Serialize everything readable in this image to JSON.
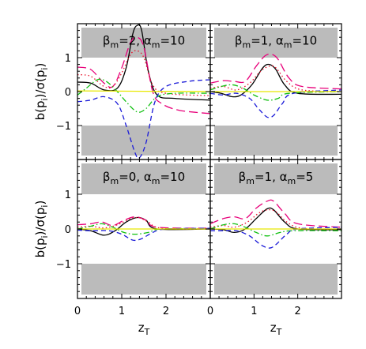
{
  "chart_data": {
    "type": "line",
    "ylabel_prefix": "b(p",
    "ylabel_sub": "i",
    "ylabel_mid": ")/σ(p",
    "ylabel_end": ")",
    "xlabel_main": "z",
    "xlabel_sub": "T",
    "xlim": [
      0,
      3
    ],
    "ylim": [
      -2,
      2
    ],
    "x_ticks": [
      "0",
      "1",
      "2"
    ],
    "y_ticks": [
      "1",
      "0",
      "−1"
    ],
    "y_tick_values": [
      1,
      0,
      -1
    ],
    "x_tick_values": [
      0,
      1,
      2
    ],
    "shaded_bands": [
      [
        1,
        2
      ],
      [
        -2,
        -1
      ]
    ],
    "colors": {
      "black": "#000000",
      "magenta": "#e8007a",
      "red": "#e8102a",
      "green": "#10c010",
      "blue": "#1a1ad8",
      "yellow": "#e8e800",
      "band": "#bbbbbb"
    },
    "panels": [
      {
        "title": {
          "beta": "2",
          "alpha": "10"
        },
        "series": [
          {
            "color": "black",
            "dash": "solid",
            "points": [
              [
                0,
                0.28
              ],
              [
                0.3,
                0.25
              ],
              [
                0.6,
                0.05
              ],
              [
                0.9,
                0.1
              ],
              [
                1.1,
                0.7
              ],
              [
                1.25,
                1.7
              ],
              [
                1.35,
                1.95
              ],
              [
                1.45,
                1.8
              ],
              [
                1.6,
                0.6
              ],
              [
                1.8,
                -0.1
              ],
              [
                2.2,
                -0.2
              ],
              [
                3,
                -0.25
              ]
            ]
          },
          {
            "color": "magenta",
            "dash": "longdash",
            "points": [
              [
                0,
                0.72
              ],
              [
                0.3,
                0.65
              ],
              [
                0.6,
                0.25
              ],
              [
                0.8,
                0.15
              ],
              [
                1.0,
                0.7
              ],
              [
                1.2,
                1.45
              ],
              [
                1.35,
                1.6
              ],
              [
                1.5,
                1.3
              ],
              [
                1.7,
                0.0
              ],
              [
                1.9,
                -0.35
              ],
              [
                2.3,
                -0.55
              ],
              [
                3,
                -0.65
              ]
            ]
          },
          {
            "color": "red",
            "dash": "dot",
            "points": [
              [
                0,
                0.5
              ],
              [
                0.3,
                0.45
              ],
              [
                0.6,
                0.15
              ],
              [
                0.8,
                0.15
              ],
              [
                1.0,
                0.55
              ],
              [
                1.2,
                1.1
              ],
              [
                1.35,
                1.2
              ],
              [
                1.5,
                1.0
              ],
              [
                1.7,
                0.2
              ],
              [
                2.0,
                -0.05
              ],
              [
                3,
                -0.12
              ]
            ]
          },
          {
            "color": "green",
            "dash": "dashdot",
            "points": [
              [
                0,
                -0.1
              ],
              [
                0.2,
                0.1
              ],
              [
                0.45,
                0.35
              ],
              [
                0.65,
                0.3
              ],
              [
                0.9,
                0.0
              ],
              [
                1.1,
                -0.3
              ],
              [
                1.35,
                -0.6
              ],
              [
                1.55,
                -0.5
              ],
              [
                1.8,
                -0.15
              ],
              [
                2.2,
                -0.05
              ],
              [
                3,
                -0.05
              ]
            ]
          },
          {
            "color": "blue",
            "dash": "dash",
            "points": [
              [
                0,
                -0.3
              ],
              [
                0.3,
                -0.25
              ],
              [
                0.6,
                -0.15
              ],
              [
                0.9,
                -0.35
              ],
              [
                1.1,
                -1.0
              ],
              [
                1.3,
                -1.8
              ],
              [
                1.4,
                -1.95
              ],
              [
                1.55,
                -1.5
              ],
              [
                1.75,
                -0.3
              ],
              [
                2.0,
                0.15
              ],
              [
                2.5,
                0.3
              ],
              [
                3,
                0.35
              ]
            ]
          },
          {
            "color": "yellow",
            "dash": "solid",
            "points": [
              [
                0,
                0.02
              ],
              [
                3,
                0.0
              ]
            ]
          }
        ]
      },
      {
        "title": {
          "beta": "1",
          "alpha": "10"
        },
        "series": [
          {
            "color": "black",
            "dash": "solid",
            "points": [
              [
                0,
                0.0
              ],
              [
                0.25,
                -0.05
              ],
              [
                0.5,
                -0.15
              ],
              [
                0.7,
                -0.1
              ],
              [
                0.95,
                0.2
              ],
              [
                1.2,
                0.7
              ],
              [
                1.35,
                0.8
              ],
              [
                1.5,
                0.65
              ],
              [
                1.7,
                0.2
              ],
              [
                2.0,
                -0.05
              ],
              [
                3,
                -0.08
              ]
            ]
          },
          {
            "color": "magenta",
            "dash": "longdash",
            "points": [
              [
                0,
                0.25
              ],
              [
                0.3,
                0.32
              ],
              [
                0.55,
                0.3
              ],
              [
                0.8,
                0.3
              ],
              [
                1.05,
                0.75
              ],
              [
                1.25,
                1.05
              ],
              [
                1.4,
                1.1
              ],
              [
                1.55,
                0.95
              ],
              [
                1.8,
                0.4
              ],
              [
                2.1,
                0.15
              ],
              [
                3,
                0.08
              ]
            ]
          },
          {
            "color": "red",
            "dash": "dot",
            "points": [
              [
                0,
                0.1
              ],
              [
                0.3,
                0.15
              ],
              [
                0.6,
                0.05
              ],
              [
                0.9,
                0.25
              ],
              [
                1.15,
                0.6
              ],
              [
                1.35,
                0.75
              ],
              [
                1.5,
                0.7
              ],
              [
                1.75,
                0.3
              ],
              [
                2.1,
                0.05
              ],
              [
                3,
                0.0
              ]
            ]
          },
          {
            "color": "green",
            "dash": "dashdot",
            "points": [
              [
                0,
                0.05
              ],
              [
                0.25,
                0.15
              ],
              [
                0.5,
                0.2
              ],
              [
                0.75,
                0.1
              ],
              [
                1.0,
                -0.1
              ],
              [
                1.3,
                -0.25
              ],
              [
                1.55,
                -0.2
              ],
              [
                1.8,
                -0.05
              ],
              [
                3,
                0.0
              ]
            ]
          },
          {
            "color": "blue",
            "dash": "dash",
            "points": [
              [
                0,
                -0.05
              ],
              [
                0.3,
                -0.1
              ],
              [
                0.6,
                -0.05
              ],
              [
                0.9,
                -0.2
              ],
              [
                1.1,
                -0.5
              ],
              [
                1.3,
                -0.75
              ],
              [
                1.45,
                -0.7
              ],
              [
                1.65,
                -0.35
              ],
              [
                1.9,
                -0.05
              ],
              [
                3,
                0.05
              ]
            ]
          },
          {
            "color": "yellow",
            "dash": "solid",
            "points": [
              [
                0,
                0.0
              ],
              [
                3,
                0.0
              ]
            ]
          }
        ]
      },
      {
        "title": {
          "beta": "0",
          "alpha": "10"
        },
        "series": [
          {
            "color": "black",
            "dash": "solid",
            "points": [
              [
                0,
                0.0
              ],
              [
                0.3,
                -0.05
              ],
              [
                0.6,
                -0.18
              ],
              [
                0.85,
                -0.05
              ],
              [
                1.1,
                0.2
              ],
              [
                1.35,
                0.33
              ],
              [
                1.55,
                0.25
              ],
              [
                1.8,
                0.0
              ],
              [
                3,
                0.0
              ]
            ]
          },
          {
            "color": "magenta",
            "dash": "longdash",
            "points": [
              [
                0,
                0.12
              ],
              [
                0.3,
                0.15
              ],
              [
                0.55,
                0.2
              ],
              [
                0.8,
                0.1
              ],
              [
                1.05,
                0.25
              ],
              [
                1.3,
                0.35
              ],
              [
                1.55,
                0.25
              ],
              [
                1.8,
                0.05
              ],
              [
                3,
                0.02
              ]
            ]
          },
          {
            "color": "red",
            "dash": "dot",
            "points": [
              [
                0,
                0.05
              ],
              [
                0.3,
                0.08
              ],
              [
                0.6,
                0.03
              ],
              [
                0.9,
                0.12
              ],
              [
                1.2,
                0.3
              ],
              [
                1.4,
                0.32
              ],
              [
                1.6,
                0.2
              ],
              [
                1.9,
                0.02
              ],
              [
                3,
                0.0
              ]
            ]
          },
          {
            "color": "green",
            "dash": "dashdot",
            "points": [
              [
                0,
                0.0
              ],
              [
                0.3,
                0.08
              ],
              [
                0.55,
                0.15
              ],
              [
                0.8,
                0.05
              ],
              [
                1.05,
                -0.1
              ],
              [
                1.3,
                -0.15
              ],
              [
                1.6,
                -0.1
              ],
              [
                1.9,
                0.0
              ],
              [
                3,
                0.0
              ]
            ]
          },
          {
            "color": "blue",
            "dash": "dash",
            "points": [
              [
                0,
                -0.03
              ],
              [
                0.3,
                -0.05
              ],
              [
                0.7,
                -0.05
              ],
              [
                1.0,
                -0.15
              ],
              [
                1.25,
                -0.32
              ],
              [
                1.45,
                -0.28
              ],
              [
                1.7,
                -0.1
              ],
              [
                2.0,
                0.0
              ],
              [
                3,
                0.02
              ]
            ]
          },
          {
            "color": "yellow",
            "dash": "solid",
            "points": [
              [
                0,
                0.0
              ],
              [
                3,
                0.0
              ]
            ]
          }
        ]
      },
      {
        "title": {
          "beta": "1",
          "alpha": "5"
        },
        "series": [
          {
            "color": "black",
            "dash": "solid",
            "points": [
              [
                0,
                0.0
              ],
              [
                0.3,
                -0.02
              ],
              [
                0.55,
                -0.1
              ],
              [
                0.8,
                0.0
              ],
              [
                1.05,
                0.3
              ],
              [
                1.3,
                0.58
              ],
              [
                1.45,
                0.55
              ],
              [
                1.7,
                0.2
              ],
              [
                2.0,
                0.0
              ],
              [
                3,
                -0.02
              ]
            ]
          },
          {
            "color": "magenta",
            "dash": "longdash",
            "points": [
              [
                0,
                0.15
              ],
              [
                0.3,
                0.3
              ],
              [
                0.55,
                0.35
              ],
              [
                0.8,
                0.3
              ],
              [
                1.05,
                0.6
              ],
              [
                1.3,
                0.8
              ],
              [
                1.45,
                0.8
              ],
              [
                1.7,
                0.45
              ],
              [
                2.0,
                0.15
              ],
              [
                3,
                0.05
              ]
            ]
          },
          {
            "color": "red",
            "dash": "dot",
            "points": [
              [
                0,
                0.05
              ],
              [
                0.3,
                0.1
              ],
              [
                0.55,
                0.05
              ],
              [
                0.85,
                0.2
              ],
              [
                1.1,
                0.45
              ],
              [
                1.3,
                0.55
              ],
              [
                1.5,
                0.5
              ],
              [
                1.75,
                0.2
              ],
              [
                2.1,
                0.02
              ],
              [
                3,
                0.0
              ]
            ]
          },
          {
            "color": "green",
            "dash": "dashdot",
            "points": [
              [
                0,
                0.0
              ],
              [
                0.3,
                0.12
              ],
              [
                0.55,
                0.15
              ],
              [
                0.8,
                0.05
              ],
              [
                1.05,
                -0.1
              ],
              [
                1.3,
                -0.2
              ],
              [
                1.6,
                -0.1
              ],
              [
                1.9,
                -0.05
              ],
              [
                3,
                -0.05
              ]
            ]
          },
          {
            "color": "blue",
            "dash": "dash",
            "points": [
              [
                0,
                -0.05
              ],
              [
                0.3,
                -0.05
              ],
              [
                0.6,
                -0.05
              ],
              [
                0.9,
                -0.2
              ],
              [
                1.15,
                -0.45
              ],
              [
                1.35,
                -0.55
              ],
              [
                1.5,
                -0.45
              ],
              [
                1.75,
                -0.15
              ],
              [
                2.0,
                0.0
              ],
              [
                3,
                0.05
              ]
            ]
          },
          {
            "color": "yellow",
            "dash": "solid",
            "points": [
              [
                0,
                0.0
              ],
              [
                3,
                0.0
              ]
            ]
          }
        ]
      }
    ]
  }
}
